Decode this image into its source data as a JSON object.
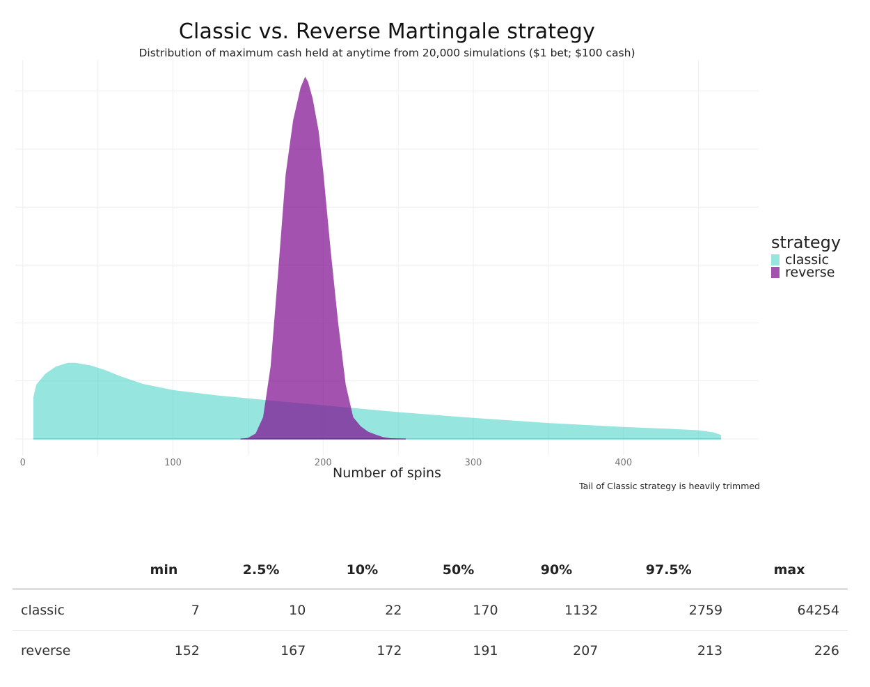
{
  "chart_data": {
    "type": "area",
    "title": "Classic vs. Reverse Martingale strategy",
    "subtitle": "Distribution of maximum cash held at anytime from 20,000 simulations ($1 bet; $100 cash)",
    "xlabel": "Number of spins",
    "ylabel": "",
    "caption": "Tail of Classic strategy is heavily trimmed",
    "xlim": [
      -5,
      490
    ],
    "ylim": [
      0,
      1
    ],
    "x_ticks": [
      0,
      100,
      200,
      300,
      400
    ],
    "y_ticks": [
      0,
      0.16,
      0.32,
      0.48,
      0.64,
      0.8,
      0.96
    ],
    "grid": true,
    "legend": {
      "title": "strategy",
      "position": "right"
    },
    "series": [
      {
        "name": "classic",
        "color": "#40cfc4",
        "x": [
          7,
          9,
          15,
          22,
          30,
          35,
          45,
          55,
          65,
          80,
          100,
          130,
          160,
          200,
          250,
          300,
          350,
          400,
          430,
          450,
          460,
          465
        ],
        "y": [
          0.115,
          0.15,
          0.18,
          0.2,
          0.21,
          0.21,
          0.203,
          0.19,
          0.173,
          0.152,
          0.135,
          0.12,
          0.108,
          0.093,
          0.074,
          0.058,
          0.044,
          0.033,
          0.028,
          0.024,
          0.018,
          0.011
        ]
      },
      {
        "name": "reverse",
        "color": "#800f90",
        "x": [
          145,
          150,
          155,
          160,
          165,
          170,
          175,
          180,
          185,
          188,
          190,
          193,
          197,
          200,
          205,
          210,
          215,
          220,
          225,
          230,
          235,
          240,
          245,
          255
        ],
        "y": [
          0,
          0.003,
          0.015,
          0.06,
          0.2,
          0.46,
          0.73,
          0.88,
          0.97,
          1.0,
          0.985,
          0.94,
          0.85,
          0.74,
          0.52,
          0.32,
          0.15,
          0.06,
          0.035,
          0.02,
          0.012,
          0.005,
          0.002,
          0
        ]
      }
    ]
  },
  "table": {
    "columns": [
      "",
      "min",
      "2.5%",
      "10%",
      "50%",
      "90%",
      "97.5%",
      "max"
    ],
    "rows": [
      {
        "name": "classic",
        "values": [
          "7",
          "10",
          "22",
          "170",
          "1132",
          "2759",
          "64254"
        ]
      },
      {
        "name": "reverse",
        "values": [
          "152",
          "167",
          "172",
          "191",
          "207",
          "213",
          "226"
        ]
      }
    ]
  }
}
